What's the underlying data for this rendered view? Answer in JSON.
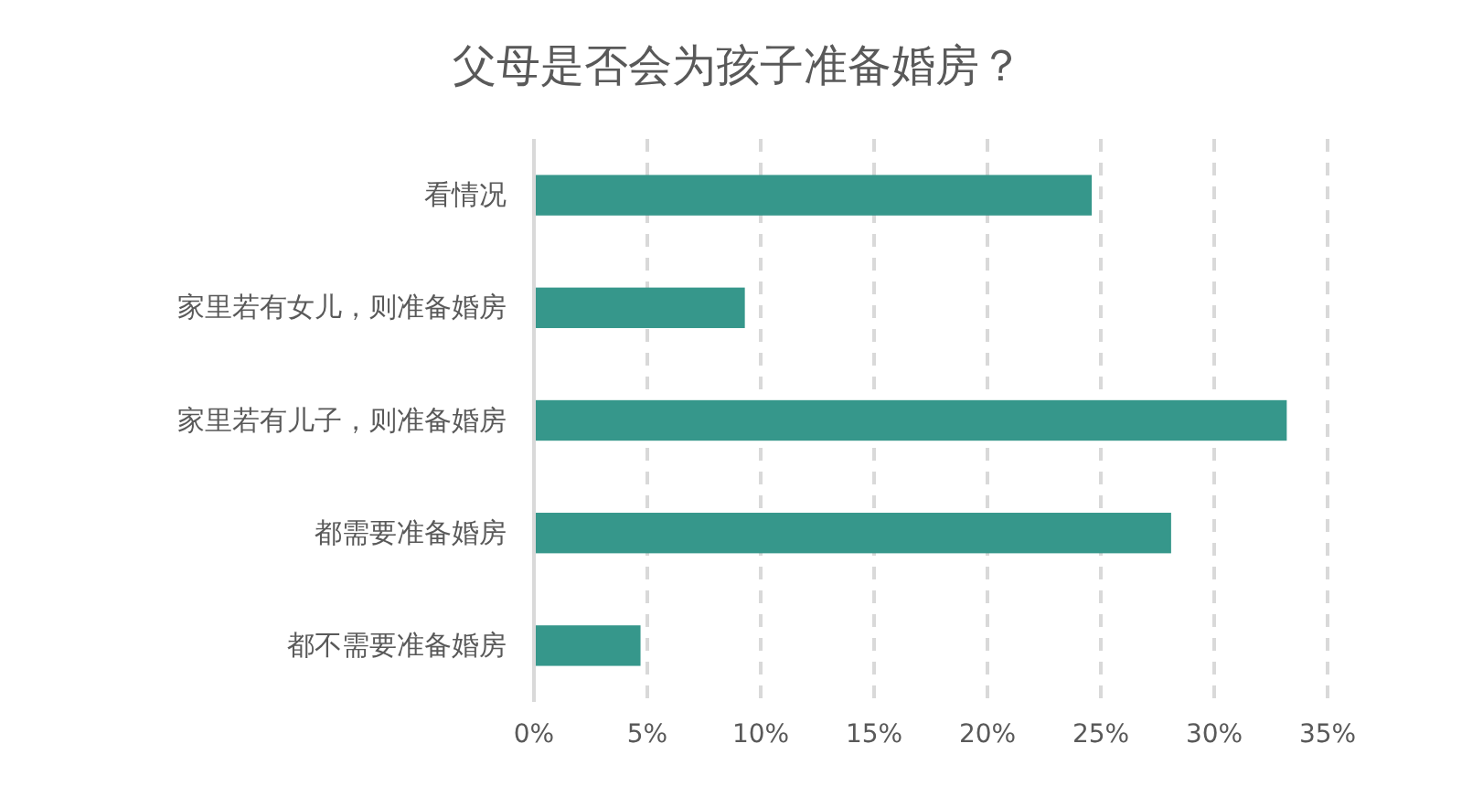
{
  "chart_data": {
    "type": "bar",
    "orientation": "horizontal",
    "title": "父母是否会为孩子准备婚房？",
    "categories": [
      "看情况",
      "家里若有女儿，则准备婚房",
      "家里若有儿子，则准备婚房",
      "都需要准备婚房",
      "都不需要准备婚房"
    ],
    "values": [
      24.6,
      9.3,
      33.2,
      28.1,
      4.7
    ],
    "color": "#36978b",
    "xlim": [
      0,
      35
    ],
    "xticks": [
      {
        "value": 0,
        "label": "0%"
      },
      {
        "value": 5,
        "label": "5%"
      },
      {
        "value": 10,
        "label": "10%"
      },
      {
        "value": 15,
        "label": "15%"
      },
      {
        "value": 20,
        "label": "20%"
      },
      {
        "value": 25,
        "label": "25%"
      },
      {
        "value": 30,
        "label": "30%"
      },
      {
        "value": 35,
        "label": "35%"
      }
    ],
    "grid": "x"
  }
}
